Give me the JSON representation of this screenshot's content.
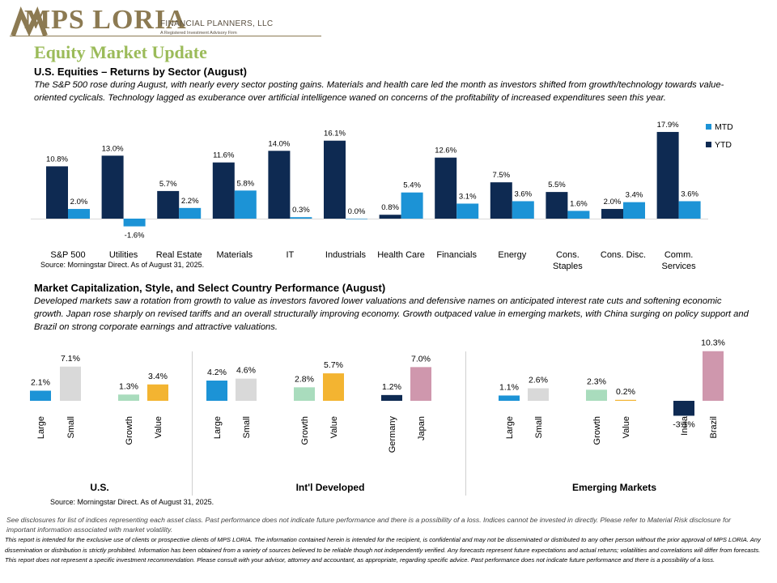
{
  "logo": {
    "text": "MPS LORIA",
    "sub": "FINANCIAL PLANNERS, LLC",
    "sub2": "A Registered Investment Advisory Firm"
  },
  "title": "Equity Market Update",
  "section1": {
    "heading": "U.S. Equities – Returns by Sector (August)",
    "paragraph": "The S&P 500 rose during August, with nearly every sector posting gains. Materials and health care led the month as investors shifted from growth/technology towards value-oriented cyclicals. Technology lagged as exuberance over artificial intelligence waned on concerns of the profitability of increased expenditures seen this year.",
    "source": "Source: Morningstar Direct. As of August 31, 2025."
  },
  "section2": {
    "heading": "Market Capitalization, Style, and Select Country Performance (August)",
    "paragraph": "Developed markets saw a rotation from growth to value as investors favored lower valuations and defensive names on anticipated interest rate cuts and softening economic growth. Japan rose sharply on revised tariffs and an overall structurally improving economy. Growth outpaced value in emerging markets, with China surging on policy support and Brazil on strong corporate earnings and attractive valuations.",
    "source": "Source: Morningstar Direct. As of August 31, 2025."
  },
  "disclaimer": "See disclosures for list of indices representing each asset class. Past performance does not indicate future performance and there is a possibility of a loss. Indices cannot be invested in directly. Please refer to Material Risk disclosure for important information associated with market volatility.",
  "fine_print": "This report is intended for the exclusive use of clients or prospective clients of MPS LORIA. The information contained herein is intended for the recipient, is confidential and may not be disseminated or distributed to any other person without the prior approval of MPS LORIA. Any dissemination or distribution is strictly prohibited. Information has been obtained from a variety of sources believed to be reliable though not independently verified. Any forecasts represent future expectations and actual returns; volatilities and correlations will differ from forecasts. This report does not represent a specific investment recommendation. Please consult with your advisor, attorney and accountant, as appropriate, regarding specific advice. Past performance does not indicate future performance and there is a possibility of a loss.",
  "colors": {
    "ytd": "#0e2a52",
    "mtd": "#1c93d6",
    "small": "#d9d9d9",
    "growth": "#a9dcbd",
    "value": "#f3b431",
    "japan": "#cf97ad",
    "brazil": "#cf97ad",
    "title": "#9bbb59"
  },
  "chart_data": [
    {
      "type": "bar",
      "categories": [
        "S&P 500",
        "Utilities",
        "Real Estate",
        "Materials",
        "IT",
        "Industrials",
        "Health Care",
        "Financials",
        "Energy",
        "Cons. Staples",
        "Cons. Disc.",
        "Comm. Services"
      ],
      "series": [
        {
          "name": "YTD",
          "values": [
            10.8,
            13.0,
            5.7,
            11.6,
            14.0,
            16.1,
            0.8,
            12.6,
            7.5,
            5.5,
            2.0,
            17.9
          ]
        },
        {
          "name": "MTD",
          "values": [
            2.0,
            -1.6,
            2.2,
            5.8,
            0.3,
            0.0,
            5.4,
            3.1,
            3.6,
            1.6,
            3.4,
            3.6
          ]
        }
      ],
      "value_format": "%",
      "legend": "top-right",
      "ylim": [
        -3,
        19
      ]
    },
    {
      "type": "bar",
      "groups": [
        {
          "name": "U.S.",
          "items": [
            {
              "label": "Large",
              "value": 2.1,
              "color": "#1c93d6"
            },
            {
              "label": "Small",
              "value": 7.1,
              "color": "#d9d9d9"
            },
            {
              "label": "Growth",
              "value": 1.3,
              "color": "#a9dcbd"
            },
            {
              "label": "Value",
              "value": 3.4,
              "color": "#f3b431"
            }
          ]
        },
        {
          "name": "Int'l Developed",
          "items": [
            {
              "label": "Large",
              "value": 4.2,
              "color": "#1c93d6"
            },
            {
              "label": "Small",
              "value": 4.6,
              "color": "#d9d9d9"
            },
            {
              "label": "Growth",
              "value": 2.8,
              "color": "#a9dcbd"
            },
            {
              "label": "Value",
              "value": 5.7,
              "color": "#f3b431"
            },
            {
              "label": "Germany",
              "value": 1.2,
              "color": "#0e2a52"
            },
            {
              "label": "Japan",
              "value": 7.0,
              "color": "#cf97ad"
            }
          ]
        },
        {
          "name": "Emerging Markets",
          "items": [
            {
              "label": "Large",
              "value": 1.1,
              "color": "#1c93d6"
            },
            {
              "label": "Small",
              "value": 2.6,
              "color": "#d9d9d9"
            },
            {
              "label": "Growth",
              "value": 2.3,
              "color": "#a9dcbd"
            },
            {
              "label": "Value",
              "value": 0.2,
              "color": "#f3b431"
            },
            {
              "label": "India",
              "value": -3.1,
              "color": "#0e2a52"
            },
            {
              "label": "Brazil",
              "value": 10.3,
              "color": "#cf97ad"
            }
          ]
        }
      ],
      "value_format": "%",
      "ylim": [
        -4,
        11
      ]
    }
  ]
}
